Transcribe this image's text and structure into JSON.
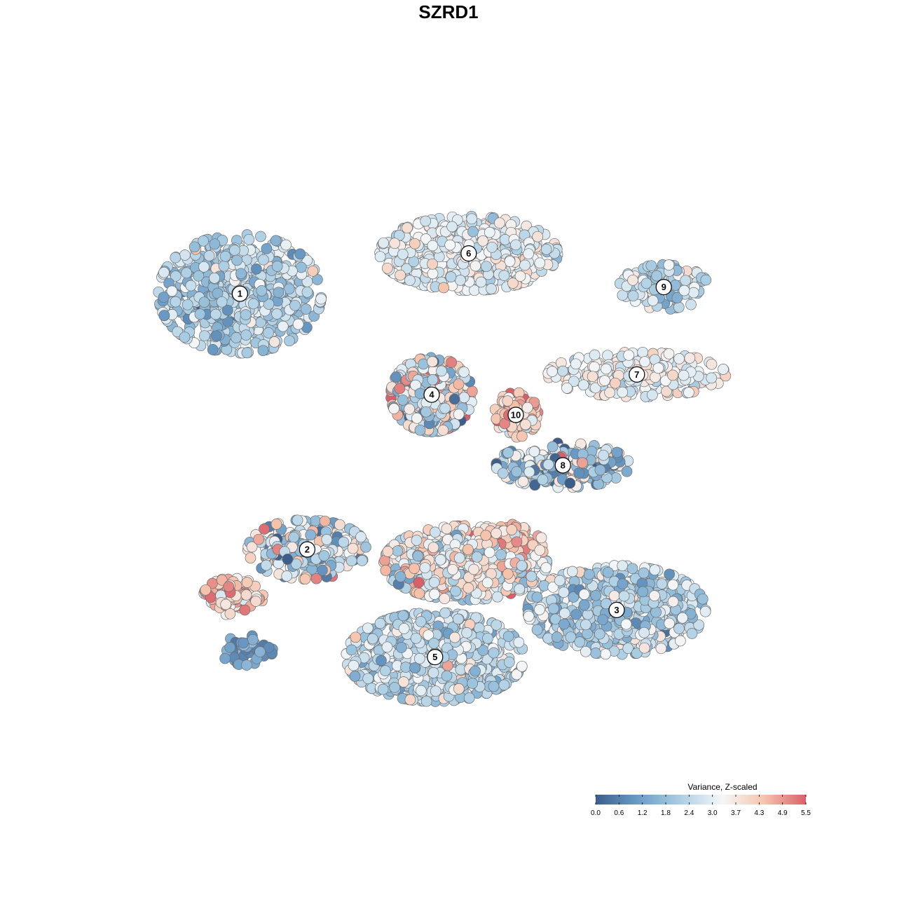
{
  "chart_data": {
    "type": "scatter",
    "title": "SZRD1",
    "xlabel": "",
    "ylabel": "",
    "grid": false,
    "axes_visible": false,
    "legend_placement": "bottom-right",
    "color_scale": {
      "title": "Variance, Z-scaled",
      "min": 0.0,
      "max": 5.5,
      "ticks": [
        "0.0",
        "0.6",
        "1.2",
        "1.8",
        "2.4",
        "3.0",
        "3.7",
        "4.3",
        "4.9",
        "5.5"
      ],
      "colors": [
        "#3c5e8a",
        "#6a9cc7",
        "#a9cde3",
        "#f4f7f9",
        "#f6c5ad",
        "#d9606a"
      ]
    },
    "clusters": [
      {
        "label": "1",
        "center": [
          -0.62,
          0.46
        ],
        "spread": [
          0.22,
          0.16
        ],
        "mean_value": 2.3,
        "sd_value": 0.6,
        "n": 900
      },
      {
        "label": "6",
        "center": [
          0.06,
          0.58
        ],
        "spread": [
          0.24,
          0.1
        ],
        "mean_value": 3.1,
        "sd_value": 0.45,
        "n": 700
      },
      {
        "label": "9",
        "center": [
          0.64,
          0.48
        ],
        "spread": [
          0.12,
          0.06
        ],
        "mean_value": 2.6,
        "sd_value": 0.6,
        "n": 200
      },
      {
        "label": "7",
        "center": [
          0.56,
          0.22
        ],
        "spread": [
          0.24,
          0.06
        ],
        "mean_value": 3.2,
        "sd_value": 0.45,
        "n": 300
      },
      {
        "label": "4",
        "center": [
          -0.05,
          0.16
        ],
        "spread": [
          0.11,
          0.1
        ],
        "mean_value": 3.0,
        "sd_value": 1.2,
        "n": 450
      },
      {
        "label": "10",
        "center": [
          0.2,
          0.1
        ],
        "spread": [
          0.06,
          0.06
        ],
        "mean_value": 4.2,
        "sd_value": 0.7,
        "n": 120
      },
      {
        "label": "8",
        "center": [
          0.34,
          -0.05
        ],
        "spread": [
          0.18,
          0.06
        ],
        "mean_value": 2.4,
        "sd_value": 1.3,
        "n": 320
      },
      {
        "label": "2",
        "center": [
          -0.42,
          -0.3
        ],
        "spread": [
          0.16,
          0.08
        ],
        "mean_value": 2.7,
        "sd_value": 1.2,
        "n": 300
      },
      {
        "label": "3",
        "center": [
          0.5,
          -0.48
        ],
        "spread": [
          0.24,
          0.12
        ],
        "mean_value": 2.4,
        "sd_value": 0.75,
        "n": 800
      },
      {
        "label": "5",
        "center": [
          -0.04,
          -0.62
        ],
        "spread": [
          0.24,
          0.12
        ],
        "mean_value": 2.5,
        "sd_value": 0.6,
        "n": 900
      },
      {
        "label": "",
        "center": [
          0.05,
          -0.34
        ],
        "spread": [
          0.22,
          0.1
        ],
        "mean_value": 3.3,
        "sd_value": 0.85,
        "n": 800
      },
      {
        "label": "",
        "center": [
          0.17,
          -0.28
        ],
        "spread": [
          0.1,
          0.05
        ],
        "mean_value": 4.4,
        "sd_value": 0.6,
        "n": 150
      },
      {
        "label": "",
        "center": [
          -0.64,
          -0.44
        ],
        "spread": [
          0.08,
          0.05
        ],
        "mean_value": 4.2,
        "sd_value": 0.7,
        "n": 120
      },
      {
        "label": "",
        "center": [
          -0.6,
          -0.6
        ],
        "spread": [
          0.07,
          0.04
        ],
        "mean_value": 1.0,
        "sd_value": 0.5,
        "n": 50
      }
    ]
  }
}
